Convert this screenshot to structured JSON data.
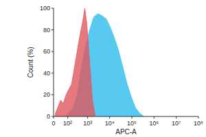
{
  "chart_data": {
    "type": "area",
    "x_label": "APC-A",
    "y_label": "Count (%)",
    "log": "x",
    "xlim": [
      0,
      100000000
    ],
    "xticks": [
      0,
      {
        "value": 100,
        "label": "10²"
      },
      {
        "value": 1000,
        "label": "10³"
      },
      {
        "value": 10000,
        "label": "10⁴"
      },
      {
        "value": 100000,
        "label": "10⁵"
      },
      {
        "value": 1000000,
        "label": "10⁶"
      },
      {
        "value": 10000000,
        "label": "10⁷"
      },
      {
        "value": 100000000,
        "label": "10⁸"
      }
    ],
    "ylim": [
      0,
      100
    ],
    "yticks": [
      0,
      20,
      40,
      60,
      80,
      100
    ],
    "series": [
      {
        "color": "#46c3ef",
        "x": [
          65,
          116,
          195,
          316,
          504,
          791,
          1235,
          1917,
          2970,
          4600,
          7100,
          10950,
          16850,
          25950,
          40000,
          61600,
          94900,
          146000,
          225000,
          346000
        ],
        "values": [
          0,
          3,
          8,
          20,
          45,
          65,
          80,
          92,
          95,
          93,
          90,
          82,
          72,
          60,
          45,
          30,
          18,
          8,
          3,
          0
        ]
      },
      {
        "color": "#e0585e",
        "x": [
          5,
          16,
          32,
          52,
          80,
          116,
          165,
          230,
          316,
          432,
          586,
          735,
          920,
          1235,
          1657,
          2220
        ],
        "values": [
          2,
          8,
          15,
          12,
          20,
          25,
          30,
          45,
          60,
          75,
          88,
          100,
          85,
          50,
          15,
          0
        ]
      }
    ]
  }
}
